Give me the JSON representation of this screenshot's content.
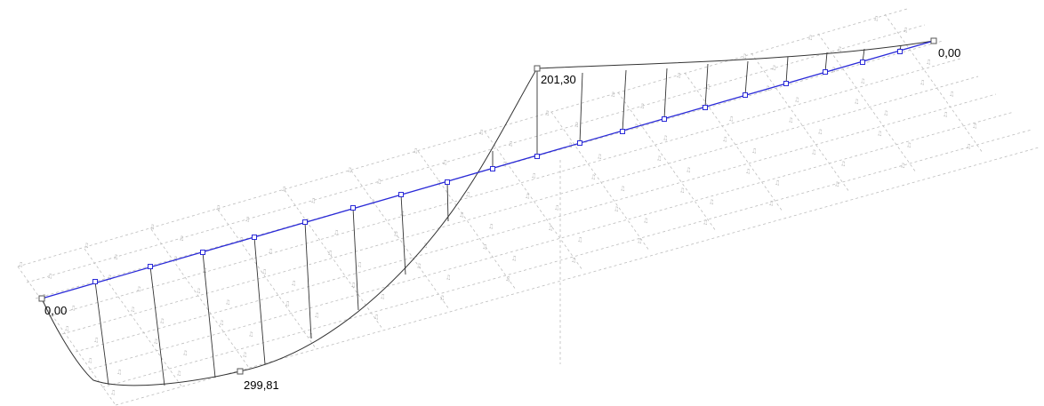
{
  "labels": {
    "left_end": "0,00",
    "max_sag": "299,81",
    "peak": "201,30",
    "right_end": "0,00"
  },
  "support_mark_glyph": "♫",
  "colors": {
    "beam": "#2a2ad8",
    "diagram": "#333333",
    "grid": "#bdbdbd",
    "background": "#ffffff"
  }
}
